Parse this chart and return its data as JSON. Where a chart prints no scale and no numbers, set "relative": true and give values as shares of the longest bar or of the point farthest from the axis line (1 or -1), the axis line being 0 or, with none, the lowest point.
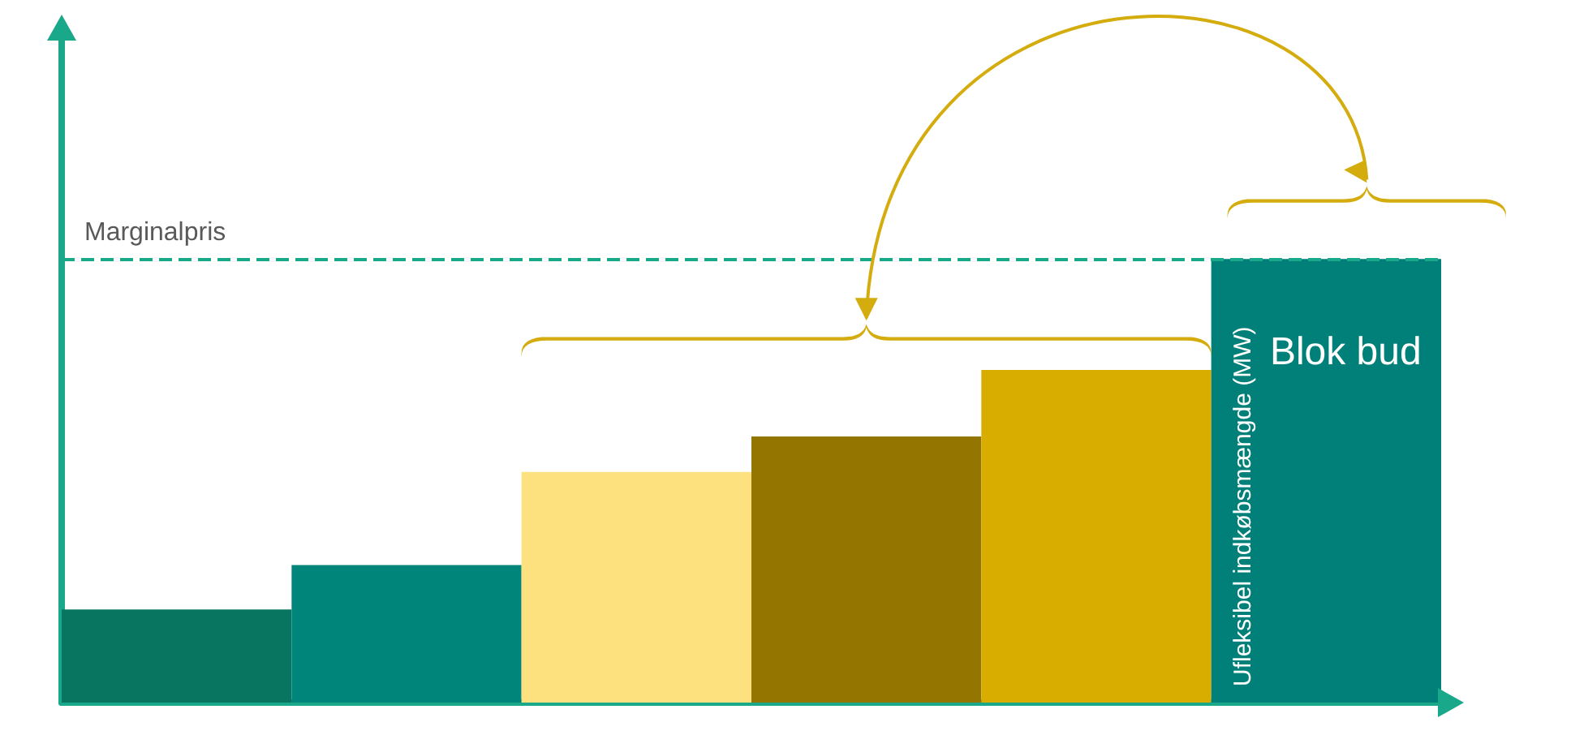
{
  "chart_data": {
    "type": "bar",
    "relative": true,
    "grid": false,
    "categories": [
      null,
      null,
      null,
      null,
      null,
      null
    ],
    "values": [
      0.21,
      0.31,
      0.52,
      0.6,
      0.75,
      1.0
    ],
    "colors": [
      "#077560",
      "#00857a",
      "#fde17f",
      "#937500",
      "#d8ad00",
      "#008079"
    ],
    "ref_lines": [
      {
        "axis": "y",
        "value": 1,
        "label": "Marginalpris",
        "color": "#1aa88a",
        "line_style": "dashed"
      }
    ],
    "annotations": [
      "Blok bud",
      "Ufleksibel indkøbsmængde (MW)"
    ]
  }
}
